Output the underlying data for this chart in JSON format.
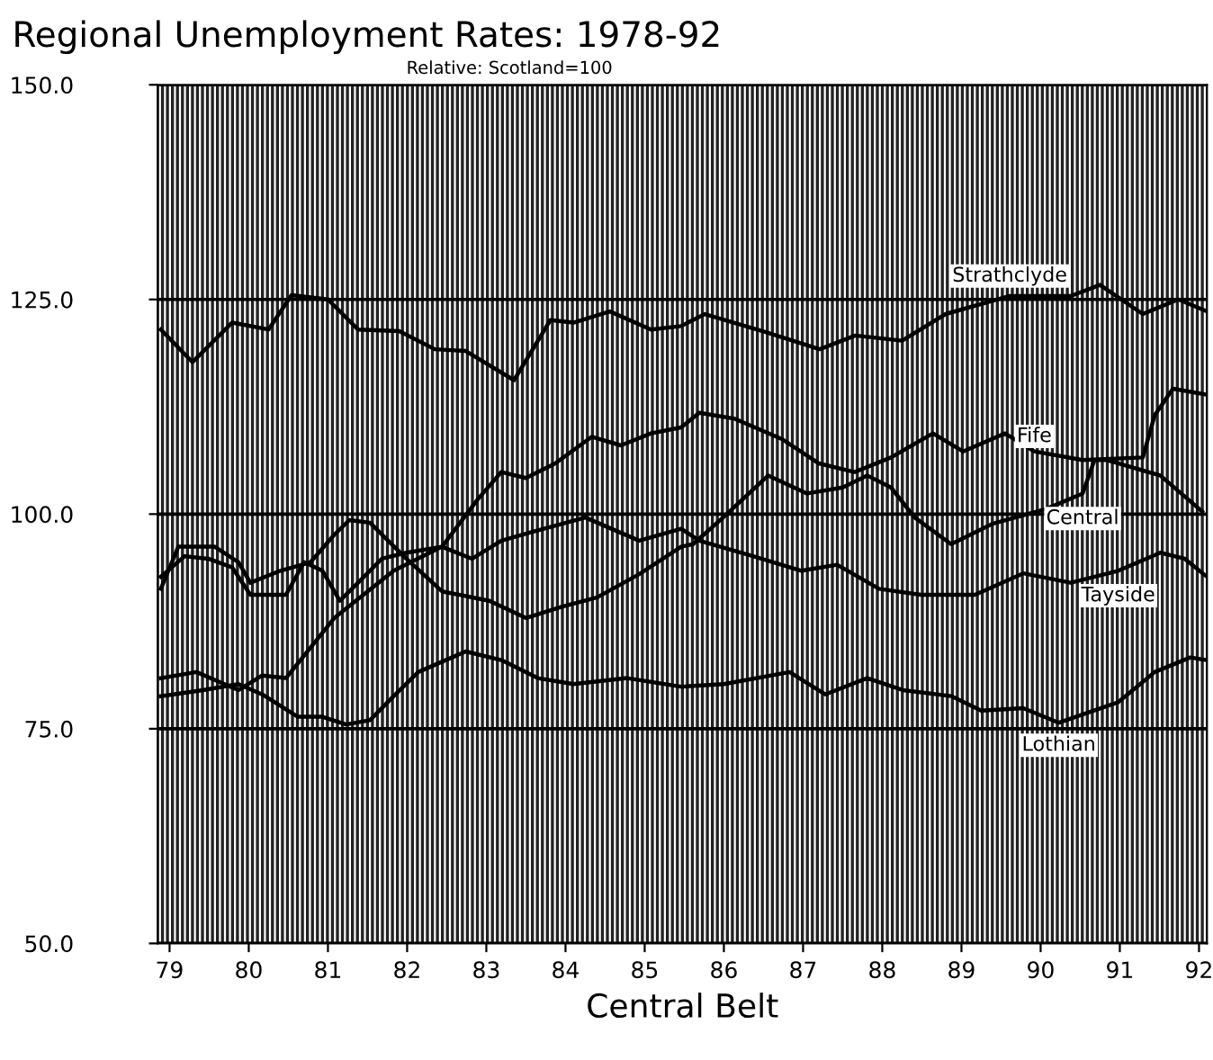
{
  "chart_data": {
    "type": "line",
    "title": "Regional Unemployment Rates: 1978-92",
    "subtitle": "Relative: Scotland=100",
    "xlabel": "Central Belt",
    "xlim": [
      78.85,
      92.1
    ],
    "xticks": [
      79,
      80,
      81,
      82,
      83,
      84,
      85,
      86,
      87,
      88,
      89,
      90,
      91,
      92
    ],
    "ylim": [
      50,
      150
    ],
    "yticks": [
      {
        "value": 50,
        "label": "50.0"
      },
      {
        "value": 75,
        "label": "75.0"
      },
      {
        "value": 100,
        "label": "100.0"
      },
      {
        "value": 125,
        "label": "125.0"
      },
      {
        "value": 150,
        "label": "150.0"
      }
    ],
    "grid": "y",
    "legend": false,
    "line_style": "solid",
    "marker": "none",
    "series": [
      {
        "name": "Strathclyde",
        "color": "#000000",
        "x": [
          78.89,
          79.29,
          79.79,
          80.25,
          80.54,
          81.0,
          81.38,
          81.9,
          82.35,
          82.74,
          83.35,
          83.81,
          84.1,
          84.56,
          85.08,
          85.46,
          85.76,
          86.53,
          87.21,
          87.66,
          88.25,
          88.8,
          89.61,
          90.38,
          90.75,
          91.29,
          91.74,
          92.1
        ],
        "values": [
          121.5,
          117.7,
          122.3,
          121.5,
          125.5,
          125,
          121.5,
          121.3,
          119.2,
          119,
          115.6,
          122.6,
          122.3,
          123.6,
          121.5,
          121.9,
          123.3,
          121.2,
          119.2,
          120.8,
          120.2,
          123.3,
          125.4,
          125.4,
          126.7,
          123.3,
          125,
          123.6
        ]
      },
      {
        "name": "Fife",
        "color": "#000000",
        "x": [
          78.89,
          79.34,
          79.87,
          80.17,
          80.47,
          81.08,
          81.83,
          82.44,
          82.89,
          83.19,
          83.5,
          83.87,
          84.33,
          84.7,
          85.08,
          85.46,
          85.69,
          86.14,
          86.74,
          87.2,
          87.65,
          88.11,
          88.64,
          89.02,
          89.55,
          89.92,
          90.53,
          91.29,
          91.44,
          91.67,
          92.1
        ],
        "values": [
          80.9,
          81.6,
          79.5,
          81.2,
          80.9,
          87.9,
          93.4,
          96.2,
          101.7,
          104.9,
          104.2,
          105.9,
          109,
          108,
          109.4,
          110.1,
          111.8,
          111.1,
          108.7,
          105.9,
          104.9,
          106.6,
          109.4,
          107.3,
          109.4,
          107.3,
          106.3,
          106.6,
          111.5,
          114.6,
          113.9
        ]
      },
      {
        "name": "Central",
        "color": "#000000",
        "x": [
          78.89,
          79.11,
          79.57,
          79.87,
          80.02,
          80.4,
          80.78,
          81.08,
          81.27,
          81.53,
          81.99,
          82.44,
          83.04,
          83.5,
          83.95,
          84.4,
          84.93,
          85.46,
          85.61,
          85.99,
          86.56,
          87.05,
          87.5,
          87.81,
          88.11,
          88.41,
          88.87,
          89.4,
          90.07,
          90.53,
          90.68,
          90.83,
          91.51,
          92.04
        ],
        "values": [
          91.3,
          96.2,
          96.2,
          94.4,
          92,
          93.4,
          94.4,
          97.6,
          99.3,
          99,
          94.8,
          91,
          89.9,
          87.9,
          89.2,
          90.3,
          93,
          96.2,
          96.5,
          99.6,
          104.5,
          102.4,
          103.1,
          104.5,
          103.1,
          99.6,
          96.5,
          98.9,
          100.6,
          102.4,
          106.3,
          106.3,
          104.5,
          100.3
        ]
      },
      {
        "name": "Tayside",
        "color": "#000000",
        "x": [
          78.89,
          79.19,
          79.49,
          79.79,
          80.02,
          80.47,
          80.7,
          80.93,
          81.15,
          81.38,
          81.68,
          81.99,
          82.44,
          82.82,
          83.19,
          83.57,
          84.25,
          84.93,
          85.46,
          85.69,
          86.37,
          86.98,
          87.43,
          87.96,
          88.49,
          89.17,
          89.78,
          90.38,
          90.98,
          91.51,
          91.82,
          92.1
        ],
        "values": [
          92.7,
          95.1,
          94.8,
          93.8,
          90.6,
          90.6,
          94.4,
          93.4,
          89.9,
          92,
          94.8,
          95.5,
          96.2,
          94.8,
          96.9,
          97.9,
          99.6,
          96.9,
          98.3,
          96.9,
          95.1,
          93.4,
          94.1,
          91.3,
          90.6,
          90.6,
          93.1,
          92,
          93.4,
          95.5,
          94.8,
          92.7
        ]
      },
      {
        "name": "Lothian",
        "color": "#000000",
        "x": [
          78.89,
          79.42,
          79.87,
          80.17,
          80.62,
          80.93,
          81.23,
          81.53,
          81.83,
          82.14,
          82.74,
          83.19,
          83.65,
          84.1,
          84.78,
          85.46,
          86.0,
          86.83,
          87.28,
          87.81,
          88.26,
          88.87,
          89.25,
          89.78,
          90.23,
          90.98,
          91.44,
          91.89,
          92.1
        ],
        "values": [
          78.8,
          79.5,
          80.2,
          79,
          76.4,
          76.4,
          75.5,
          76,
          78.8,
          81.6,
          84,
          83,
          80.9,
          80.2,
          80.9,
          79.9,
          80.2,
          81.6,
          79,
          80.9,
          79.5,
          78.8,
          77.1,
          77.4,
          75.7,
          78.1,
          81.6,
          83.3,
          83
        ]
      }
    ]
  }
}
